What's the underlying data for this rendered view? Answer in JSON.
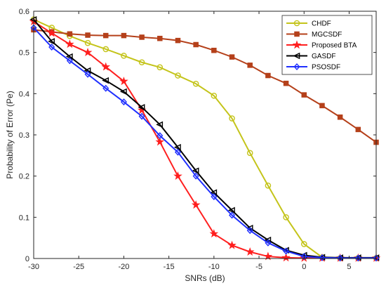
{
  "chart_data": {
    "type": "line",
    "title": "",
    "xlabel": "SNRs (dB)",
    "ylabel": "Probability of Error (Pe)",
    "xlim": [
      -30,
      8
    ],
    "ylim": [
      0,
      0.6
    ],
    "x_ticks": [
      -30,
      -25,
      -20,
      -15,
      -10,
      -5,
      0,
      5
    ],
    "y_ticks": [
      0,
      0.1,
      0.2,
      0.3,
      0.4,
      0.5,
      0.6
    ],
    "x_tick_labels": [
      "-30",
      "-25",
      "-20",
      "-15",
      "-10",
      "-5",
      "0",
      "5"
    ],
    "y_tick_labels": [
      "0",
      "0.1",
      "0.2",
      "0.3",
      "0.4",
      "0.5",
      "0.6"
    ],
    "grid": false,
    "legend_position": "top-right",
    "x": [
      -30,
      -28,
      -26,
      -24,
      -22,
      -20,
      -18,
      -16,
      -14,
      -12,
      -10,
      -8,
      -6,
      -4,
      -2,
      0,
      2,
      4,
      6,
      8
    ],
    "series": [
      {
        "name": "CHDF",
        "color": "#c4c41a",
        "marker": "circle",
        "values": [
          0.58,
          0.56,
          0.54,
          0.523,
          0.508,
          0.492,
          0.476,
          0.464,
          0.444,
          0.424,
          0.395,
          0.34,
          0.256,
          0.177,
          0.1,
          0.035,
          0.003,
          0.001,
          0.001,
          0.001
        ]
      },
      {
        "name": "MGCSDF",
        "color": "#b5401a",
        "marker": "square",
        "values": [
          0.555,
          0.55,
          0.545,
          0.542,
          0.541,
          0.541,
          0.537,
          0.534,
          0.529,
          0.519,
          0.505,
          0.489,
          0.469,
          0.444,
          0.425,
          0.397,
          0.371,
          0.343,
          0.313,
          0.282
        ]
      },
      {
        "name": "Proposed BTA",
        "color": "#ff1f1f",
        "marker": "star",
        "values": [
          0.575,
          0.547,
          0.52,
          0.5,
          0.465,
          0.43,
          0.36,
          0.283,
          0.2,
          0.13,
          0.06,
          0.032,
          0.016,
          0.005,
          0.002,
          0.001,
          0.001,
          0.001,
          0.001,
          0.001
        ]
      },
      {
        "name": "GASDF",
        "color": "#000000",
        "marker": "triangle-left",
        "values": [
          0.58,
          0.527,
          0.49,
          0.456,
          0.432,
          0.405,
          0.367,
          0.325,
          0.27,
          0.213,
          0.16,
          0.117,
          0.074,
          0.045,
          0.02,
          0.008,
          0.003,
          0.002,
          0.002,
          0.002
        ]
      },
      {
        "name": "PSOSDF",
        "color": "#1f2fff",
        "marker": "diamond",
        "values": [
          0.56,
          0.513,
          0.48,
          0.447,
          0.413,
          0.38,
          0.345,
          0.298,
          0.258,
          0.2,
          0.15,
          0.105,
          0.068,
          0.038,
          0.018,
          0.005,
          0.002,
          0.001,
          0.001,
          0.001
        ]
      }
    ]
  }
}
